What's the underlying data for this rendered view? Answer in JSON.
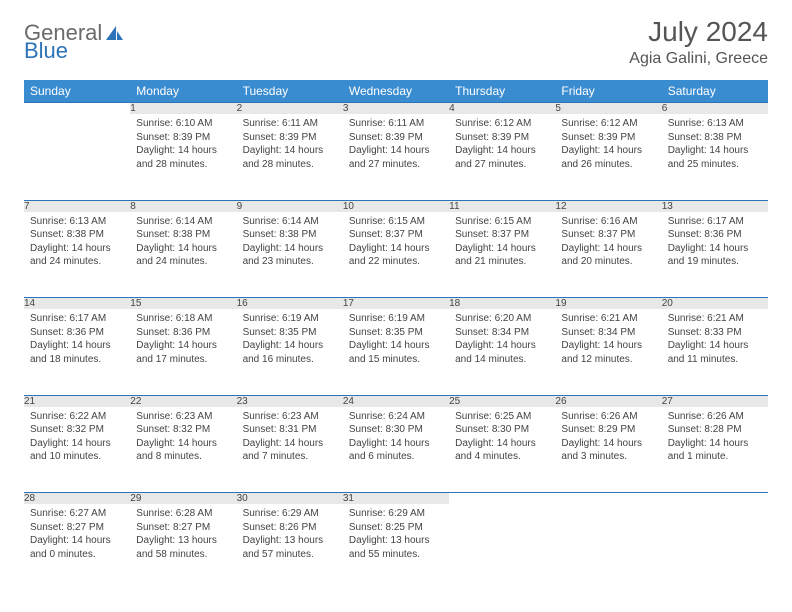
{
  "logo": {
    "text1": "General",
    "text2": "Blue"
  },
  "title": "July 2024",
  "location": "Agia Galini, Greece",
  "colors": {
    "header_bg": "#3a8cd1",
    "header_text": "#ffffff",
    "daynum_bg": "#e8e8e8",
    "row_divider": "#2d73b8",
    "body_text": "#444444",
    "page_bg": "#ffffff"
  },
  "weekdays": [
    "Sunday",
    "Monday",
    "Tuesday",
    "Wednesday",
    "Thursday",
    "Friday",
    "Saturday"
  ],
  "weeks": [
    [
      null,
      {
        "n": "1",
        "sr": "Sunrise: 6:10 AM",
        "ss": "Sunset: 8:39 PM",
        "dl": "Daylight: 14 hours and 28 minutes."
      },
      {
        "n": "2",
        "sr": "Sunrise: 6:11 AM",
        "ss": "Sunset: 8:39 PM",
        "dl": "Daylight: 14 hours and 28 minutes."
      },
      {
        "n": "3",
        "sr": "Sunrise: 6:11 AM",
        "ss": "Sunset: 8:39 PM",
        "dl": "Daylight: 14 hours and 27 minutes."
      },
      {
        "n": "4",
        "sr": "Sunrise: 6:12 AM",
        "ss": "Sunset: 8:39 PM",
        "dl": "Daylight: 14 hours and 27 minutes."
      },
      {
        "n": "5",
        "sr": "Sunrise: 6:12 AM",
        "ss": "Sunset: 8:39 PM",
        "dl": "Daylight: 14 hours and 26 minutes."
      },
      {
        "n": "6",
        "sr": "Sunrise: 6:13 AM",
        "ss": "Sunset: 8:38 PM",
        "dl": "Daylight: 14 hours and 25 minutes."
      }
    ],
    [
      {
        "n": "7",
        "sr": "Sunrise: 6:13 AM",
        "ss": "Sunset: 8:38 PM",
        "dl": "Daylight: 14 hours and 24 minutes."
      },
      {
        "n": "8",
        "sr": "Sunrise: 6:14 AM",
        "ss": "Sunset: 8:38 PM",
        "dl": "Daylight: 14 hours and 24 minutes."
      },
      {
        "n": "9",
        "sr": "Sunrise: 6:14 AM",
        "ss": "Sunset: 8:38 PM",
        "dl": "Daylight: 14 hours and 23 minutes."
      },
      {
        "n": "10",
        "sr": "Sunrise: 6:15 AM",
        "ss": "Sunset: 8:37 PM",
        "dl": "Daylight: 14 hours and 22 minutes."
      },
      {
        "n": "11",
        "sr": "Sunrise: 6:15 AM",
        "ss": "Sunset: 8:37 PM",
        "dl": "Daylight: 14 hours and 21 minutes."
      },
      {
        "n": "12",
        "sr": "Sunrise: 6:16 AM",
        "ss": "Sunset: 8:37 PM",
        "dl": "Daylight: 14 hours and 20 minutes."
      },
      {
        "n": "13",
        "sr": "Sunrise: 6:17 AM",
        "ss": "Sunset: 8:36 PM",
        "dl": "Daylight: 14 hours and 19 minutes."
      }
    ],
    [
      {
        "n": "14",
        "sr": "Sunrise: 6:17 AM",
        "ss": "Sunset: 8:36 PM",
        "dl": "Daylight: 14 hours and 18 minutes."
      },
      {
        "n": "15",
        "sr": "Sunrise: 6:18 AM",
        "ss": "Sunset: 8:36 PM",
        "dl": "Daylight: 14 hours and 17 minutes."
      },
      {
        "n": "16",
        "sr": "Sunrise: 6:19 AM",
        "ss": "Sunset: 8:35 PM",
        "dl": "Daylight: 14 hours and 16 minutes."
      },
      {
        "n": "17",
        "sr": "Sunrise: 6:19 AM",
        "ss": "Sunset: 8:35 PM",
        "dl": "Daylight: 14 hours and 15 minutes."
      },
      {
        "n": "18",
        "sr": "Sunrise: 6:20 AM",
        "ss": "Sunset: 8:34 PM",
        "dl": "Daylight: 14 hours and 14 minutes."
      },
      {
        "n": "19",
        "sr": "Sunrise: 6:21 AM",
        "ss": "Sunset: 8:34 PM",
        "dl": "Daylight: 14 hours and 12 minutes."
      },
      {
        "n": "20",
        "sr": "Sunrise: 6:21 AM",
        "ss": "Sunset: 8:33 PM",
        "dl": "Daylight: 14 hours and 11 minutes."
      }
    ],
    [
      {
        "n": "21",
        "sr": "Sunrise: 6:22 AM",
        "ss": "Sunset: 8:32 PM",
        "dl": "Daylight: 14 hours and 10 minutes."
      },
      {
        "n": "22",
        "sr": "Sunrise: 6:23 AM",
        "ss": "Sunset: 8:32 PM",
        "dl": "Daylight: 14 hours and 8 minutes."
      },
      {
        "n": "23",
        "sr": "Sunrise: 6:23 AM",
        "ss": "Sunset: 8:31 PM",
        "dl": "Daylight: 14 hours and 7 minutes."
      },
      {
        "n": "24",
        "sr": "Sunrise: 6:24 AM",
        "ss": "Sunset: 8:30 PM",
        "dl": "Daylight: 14 hours and 6 minutes."
      },
      {
        "n": "25",
        "sr": "Sunrise: 6:25 AM",
        "ss": "Sunset: 8:30 PM",
        "dl": "Daylight: 14 hours and 4 minutes."
      },
      {
        "n": "26",
        "sr": "Sunrise: 6:26 AM",
        "ss": "Sunset: 8:29 PM",
        "dl": "Daylight: 14 hours and 3 minutes."
      },
      {
        "n": "27",
        "sr": "Sunrise: 6:26 AM",
        "ss": "Sunset: 8:28 PM",
        "dl": "Daylight: 14 hours and 1 minute."
      }
    ],
    [
      {
        "n": "28",
        "sr": "Sunrise: 6:27 AM",
        "ss": "Sunset: 8:27 PM",
        "dl": "Daylight: 14 hours and 0 minutes."
      },
      {
        "n": "29",
        "sr": "Sunrise: 6:28 AM",
        "ss": "Sunset: 8:27 PM",
        "dl": "Daylight: 13 hours and 58 minutes."
      },
      {
        "n": "30",
        "sr": "Sunrise: 6:29 AM",
        "ss": "Sunset: 8:26 PM",
        "dl": "Daylight: 13 hours and 57 minutes."
      },
      {
        "n": "31",
        "sr": "Sunrise: 6:29 AM",
        "ss": "Sunset: 8:25 PM",
        "dl": "Daylight: 13 hours and 55 minutes."
      },
      null,
      null,
      null
    ]
  ]
}
